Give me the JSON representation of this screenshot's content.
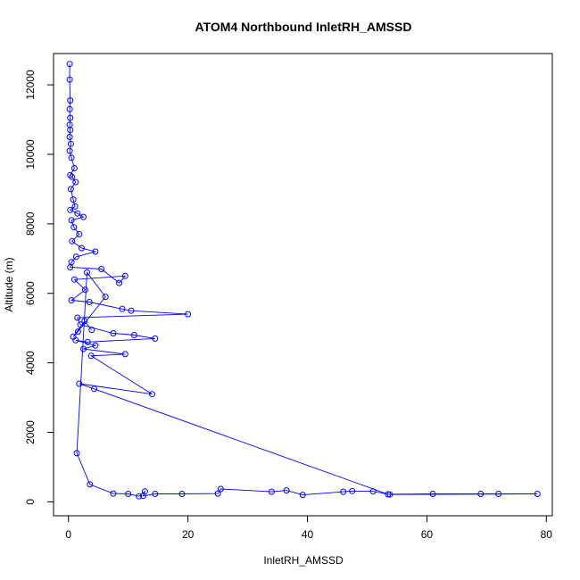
{
  "chart_data": {
    "type": "line",
    "title": "ATOM4 Northbound InletRH_AMSSD",
    "xlabel": "InletRH_AMSSD",
    "ylabel": "Altitude (m)",
    "xlim": [
      -2.5,
      81
    ],
    "ylim": [
      -400,
      12900
    ],
    "xticks": [
      0,
      20,
      40,
      60,
      80
    ],
    "yticks": [
      0,
      2000,
      4000,
      6000,
      8000,
      10000,
      12000
    ],
    "grid": false,
    "legend": "none",
    "color": "#0000ff",
    "markers": "open-circle",
    "series": [
      {
        "points": [
          [
            0.2,
            12600
          ],
          [
            0.2,
            12150
          ],
          [
            0.3,
            11550
          ],
          [
            0.2,
            11300
          ],
          [
            0.3,
            11050
          ],
          [
            0.2,
            10850
          ],
          [
            0.3,
            10700
          ],
          [
            0.2,
            10500
          ],
          [
            0.4,
            10300
          ],
          [
            0.2,
            10100
          ],
          [
            0.5,
            9900
          ],
          [
            1.0,
            9600
          ],
          [
            0.3,
            9400
          ],
          [
            0.6,
            9350
          ],
          [
            1.2,
            9200
          ],
          [
            0.4,
            9000
          ],
          [
            0.8,
            8700
          ],
          [
            1.1,
            8500
          ],
          [
            0.3,
            8400
          ],
          [
            1.5,
            8300
          ],
          [
            2.5,
            8200
          ],
          [
            0.5,
            8100
          ],
          [
            0.9,
            7900
          ],
          [
            1.8,
            7700
          ],
          [
            0.6,
            7500
          ],
          [
            2.2,
            7300
          ],
          [
            4.5,
            7200
          ],
          [
            1.3,
            7050
          ],
          [
            0.5,
            6900
          ],
          [
            0.3,
            6750
          ],
          [
            5.5,
            6700
          ],
          [
            8.5,
            6300
          ],
          [
            9.5,
            6500
          ],
          [
            1.0,
            6400
          ],
          [
            2.8,
            6100
          ],
          [
            0.5,
            5800
          ],
          [
            3.5,
            5750
          ],
          [
            9.0,
            5550
          ],
          [
            10.5,
            5500
          ],
          [
            20.0,
            5400
          ],
          [
            1.5,
            5300
          ],
          [
            2.0,
            5100
          ],
          [
            7.5,
            4850
          ],
          [
            11.0,
            4800
          ],
          [
            14.5,
            4700
          ],
          [
            3.2,
            4600
          ],
          [
            1.2,
            4650
          ],
          [
            4.5,
            4500
          ],
          [
            2.5,
            4400
          ],
          [
            9.5,
            4250
          ],
          [
            3.8,
            4200
          ],
          [
            14.0,
            3100
          ],
          [
            1.8,
            3400
          ],
          [
            4.3,
            3250
          ],
          [
            53.5,
            220
          ],
          [
            61.0,
            230
          ],
          [
            69.0,
            230
          ],
          [
            72.0,
            230
          ],
          [
            78.5,
            230
          ],
          [
            53.8,
            210
          ],
          [
            51.0,
            300
          ],
          [
            47.5,
            310
          ],
          [
            46.0,
            290
          ],
          [
            39.2,
            200
          ],
          [
            36.5,
            330
          ],
          [
            34.0,
            290
          ],
          [
            25.5,
            370
          ],
          [
            25.0,
            240
          ],
          [
            19.0,
            230
          ],
          [
            14.5,
            230
          ],
          [
            12.5,
            170
          ],
          [
            12.8,
            300
          ],
          [
            11.8,
            160
          ],
          [
            10.0,
            230
          ],
          [
            7.5,
            240
          ],
          [
            3.6,
            500
          ],
          [
            1.4,
            1400
          ],
          [
            3.1,
            6600
          ],
          [
            6.2,
            5900
          ],
          [
            1.6,
            4900
          ],
          [
            0.8,
            4750
          ],
          [
            2.7,
            5200
          ],
          [
            3.9,
            4950
          ]
        ]
      }
    ]
  }
}
